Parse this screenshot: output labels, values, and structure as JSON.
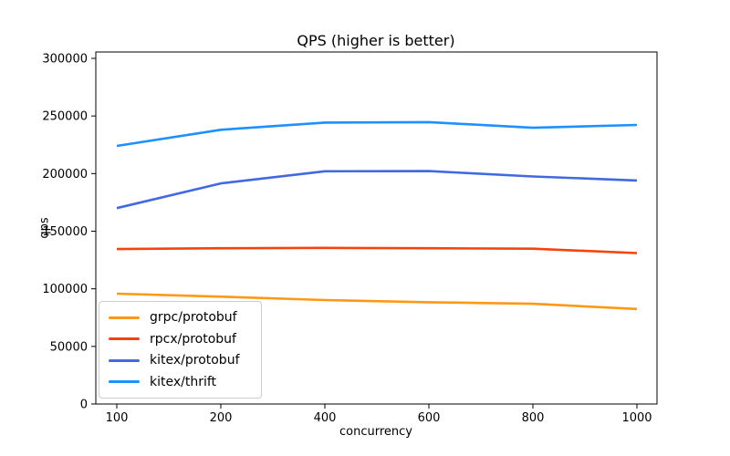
{
  "chart_data": {
    "type": "line",
    "title": "QPS (higher is better)",
    "xlabel": "concurrency",
    "ylabel": "qps",
    "categories": [
      100,
      200,
      400,
      600,
      800,
      1000
    ],
    "x_tick_labels": [
      "100",
      "200",
      "400",
      "600",
      "800",
      "1000"
    ],
    "x_spacing": "even-categorical",
    "y_ticks": [
      0,
      50000,
      100000,
      150000,
      200000,
      250000,
      300000
    ],
    "y_tick_labels": [
      "0",
      "50000",
      "100000",
      "150000",
      "200000",
      "250000",
      "300000"
    ],
    "ylim": [
      0,
      303000
    ],
    "grid": false,
    "legend_position": "lower-left",
    "axis_color": "#000000",
    "series": [
      {
        "name": "grpc/protobuf",
        "color": "#ff9814",
        "values": [
          95800,
          93200,
          90200,
          88300,
          87000,
          82500
        ]
      },
      {
        "name": "rpcx/protobuf",
        "color": "#f4440e",
        "values": [
          134500,
          135200,
          135500,
          135200,
          134800,
          131000
        ]
      },
      {
        "name": "kitex/protobuf",
        "color": "#4169e1",
        "values": [
          170000,
          191500,
          202000,
          202200,
          197500,
          194000
        ]
      },
      {
        "name": "kitex/thrift",
        "color": "#1e90ff",
        "values": [
          224000,
          238000,
          244300,
          244700,
          239800,
          242200
        ]
      }
    ]
  }
}
